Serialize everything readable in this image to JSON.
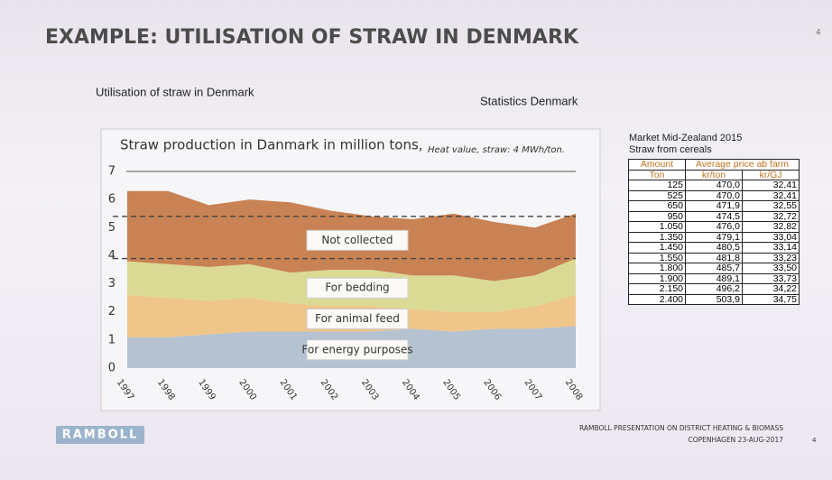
{
  "header": {
    "title": "EXAMPLE: UTILISATION OF STRAW IN DENMARK",
    "page": "4",
    "subtitle": "Utilisation of straw in Denmark",
    "source": "Statistics Denmark"
  },
  "chart_data": {
    "type": "stacked_area",
    "title": "Straw production in Danmark in million tons,",
    "subtitle": "Heat value, straw: 4 MWh/ton.",
    "categories": [
      "1997",
      "1998",
      "1999",
      "2000",
      "2001",
      "2002",
      "2003",
      "2004",
      "2005",
      "2006",
      "2007",
      "2008"
    ],
    "series": [
      {
        "name": "For energy purposes",
        "color": "#aebdcc",
        "values": [
          1.1,
          1.1,
          1.2,
          1.3,
          1.3,
          1.3,
          1.3,
          1.4,
          1.3,
          1.4,
          1.4,
          1.5
        ]
      },
      {
        "name": "For animal feed",
        "color": "#eec07c",
        "values": [
          1.5,
          1.4,
          1.2,
          1.2,
          1.0,
          0.9,
          0.9,
          0.7,
          0.7,
          0.6,
          0.8,
          1.1
        ]
      },
      {
        "name": "For bedding",
        "color": "#d8d78a",
        "values": [
          1.2,
          1.2,
          1.2,
          1.2,
          1.1,
          1.3,
          1.3,
          1.2,
          1.3,
          1.1,
          1.1,
          1.3
        ]
      },
      {
        "name": "Not collected",
        "color": "#c47640",
        "values": [
          2.5,
          2.6,
          2.2,
          2.3,
          2.5,
          2.1,
          1.9,
          2.0,
          2.2,
          2.1,
          1.7,
          1.6
        ]
      }
    ],
    "reference_lines": [
      5.4,
      3.9
    ],
    "ylim": [
      0,
      7
    ],
    "yticks": [
      0,
      1,
      2,
      3,
      4,
      5,
      6,
      7
    ],
    "grid": false
  },
  "table": {
    "title": "Market Mid-Zealand 2015",
    "subtitle": "Straw from cereals",
    "header": [
      [
        "Amount",
        "Average price ab farm"
      ],
      [
        "Ton",
        "kr/ton",
        "kr/GJ"
      ]
    ],
    "rows": [
      [
        "125",
        "470,0",
        "32,41"
      ],
      [
        "525",
        "470,0",
        "32,41"
      ],
      [
        "650",
        "471,9",
        "32,55"
      ],
      [
        "950",
        "474,5",
        "32,72"
      ],
      [
        "1.050",
        "476,0",
        "32,82"
      ],
      [
        "1.350",
        "479,1",
        "33,04"
      ],
      [
        "1.450",
        "480,5",
        "33,14"
      ],
      [
        "1.550",
        "481,8",
        "33,23"
      ],
      [
        "1.800",
        "485,7",
        "33,50"
      ],
      [
        "1.900",
        "489,1",
        "33,73"
      ],
      [
        "2.150",
        "496,2",
        "34,22"
      ],
      [
        "2.400",
        "503,9",
        "34,75"
      ]
    ]
  },
  "footer": {
    "logo": "RAMBOLL",
    "line1": "RAMBOLL PRESENTATION ON DISTRICT HEATING & BIOMASS",
    "line2": "COPENHAGEN 23-AUG-2017",
    "page": "4"
  }
}
